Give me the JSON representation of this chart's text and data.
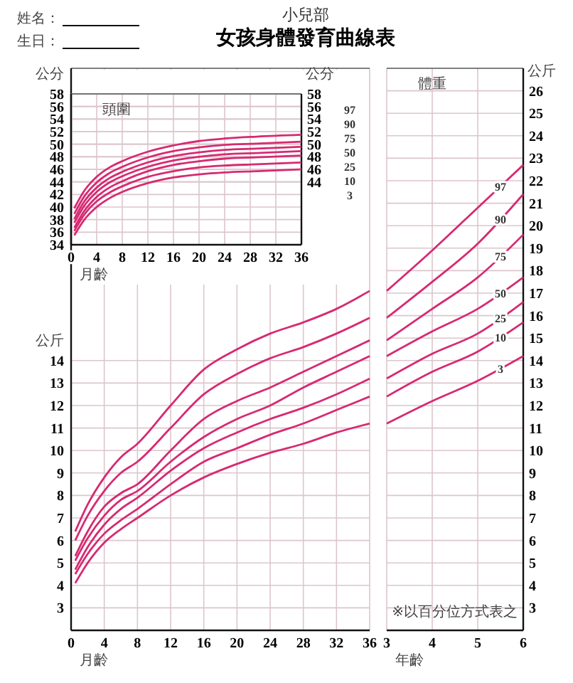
{
  "chart_data": [
    {
      "type": "line",
      "title": "女孩身體發育曲線表",
      "subtitle": "小兒部",
      "xlabel": "月齡",
      "ylabel": "公分",
      "y2label": "公分",
      "annotations": [
        "頭圍",
        "姓名：",
        "生日："
      ],
      "x": [
        0.5,
        2,
        4,
        6,
        8,
        12,
        16,
        20,
        24,
        29,
        36
      ],
      "xlim": [
        0,
        36
      ],
      "xticks": [
        0,
        4,
        8,
        12,
        16,
        20,
        24,
        28,
        32,
        36
      ],
      "ylim": [
        34,
        58
      ],
      "yticks": [
        34,
        36,
        38,
        40,
        42,
        44,
        46,
        48,
        50,
        52,
        54,
        56,
        58
      ],
      "y2lim": [
        34,
        58
      ],
      "y2ticks": [
        44,
        46,
        48,
        50,
        52,
        54,
        56,
        58
      ],
      "grid": true,
      "series": [
        {
          "name": "97",
          "color": "#d62a72",
          "values": [
            39.8,
            42.5,
            44.8,
            46.3,
            47.3,
            48.8,
            49.8,
            50.5,
            50.9,
            51.2,
            51.5
          ]
        },
        {
          "name": "90",
          "color": "#d62a72",
          "values": [
            38.9,
            41.6,
            43.9,
            45.4,
            46.4,
            47.9,
            48.9,
            49.5,
            49.9,
            50.1,
            50.4
          ]
        },
        {
          "name": "75",
          "color": "#d62a72",
          "values": [
            38.1,
            40.8,
            43.1,
            44.6,
            45.6,
            47.1,
            48.1,
            48.7,
            49.1,
            49.3,
            49.6
          ]
        },
        {
          "name": "50",
          "color": "#d62a72",
          "values": [
            37.5,
            40.1,
            42.4,
            43.9,
            44.9,
            46.4,
            47.4,
            48.0,
            48.4,
            48.6,
            48.9
          ]
        },
        {
          "name": "25",
          "color": "#d62a72",
          "values": [
            36.7,
            39.3,
            41.6,
            43.1,
            44.1,
            45.7,
            46.7,
            47.3,
            47.7,
            47.9,
            48.2
          ]
        },
        {
          "name": "10",
          "color": "#d62a72",
          "values": [
            36.2,
            38.7,
            40.9,
            42.3,
            43.3,
            44.8,
            45.7,
            46.3,
            46.6,
            46.8,
            47.1
          ]
        },
        {
          "name": "3",
          "color": "#d62a72",
          "values": [
            35.5,
            37.9,
            40.0,
            41.4,
            42.4,
            43.8,
            44.7,
            45.2,
            45.5,
            45.7,
            46.0
          ]
        }
      ]
    },
    {
      "type": "line",
      "xlabel": "月齡",
      "ylabel": "公斤",
      "x": [
        0.5,
        2,
        4,
        6,
        8,
        12,
        16,
        20,
        24,
        28,
        32,
        36
      ],
      "xlim": [
        0,
        36
      ],
      "xticks": [
        0,
        4,
        8,
        12,
        16,
        20,
        24,
        28,
        32,
        36
      ],
      "ylim": [
        2,
        27
      ],
      "yticks": [
        3,
        4,
        5,
        6,
        7,
        8,
        9,
        10,
        11,
        12,
        13,
        14
      ],
      "grid": true,
      "series": [
        {
          "color": "#d62a72",
          "values": [
            6.4,
            7.6,
            8.8,
            9.7,
            10.3,
            12.0,
            13.6,
            14.5,
            15.2,
            15.7,
            16.3,
            17.1
          ]
        },
        {
          "color": "#d62a72",
          "values": [
            6.0,
            7.1,
            8.2,
            9.0,
            9.5,
            11.0,
            12.5,
            13.4,
            14.1,
            14.6,
            15.2,
            15.9
          ]
        },
        {
          "color": "#d62a72",
          "values": [
            5.3,
            6.4,
            7.5,
            8.1,
            8.5,
            10.0,
            11.4,
            12.2,
            12.8,
            13.5,
            14.2,
            14.9
          ]
        },
        {
          "color": "#d62a72",
          "values": [
            5.1,
            6.1,
            7.1,
            7.8,
            8.2,
            9.5,
            10.6,
            11.4,
            12.0,
            12.8,
            13.5,
            14.2
          ]
        },
        {
          "color": "#d62a72",
          "values": [
            4.7,
            5.7,
            6.7,
            7.4,
            7.9,
            9.1,
            10.1,
            10.8,
            11.4,
            11.9,
            12.5,
            13.2
          ]
        },
        {
          "color": "#d62a72",
          "values": [
            4.5,
            5.4,
            6.3,
            6.9,
            7.4,
            8.5,
            9.5,
            10.1,
            10.7,
            11.2,
            11.8,
            12.4
          ]
        },
        {
          "color": "#d62a72",
          "values": [
            4.1,
            5.0,
            5.9,
            6.5,
            7.0,
            8.0,
            8.8,
            9.4,
            9.9,
            10.3,
            10.8,
            11.2
          ]
        }
      ]
    },
    {
      "type": "line",
      "xlabel": "年齡",
      "y2label": "公斤",
      "annotations": [
        "體重",
        "※以百分位方式表之"
      ],
      "x": [
        3,
        4,
        5,
        6
      ],
      "xlim": [
        3,
        6
      ],
      "xticks": [
        3,
        4,
        5,
        6
      ],
      "y2lim": [
        2,
        27
      ],
      "y2ticks": [
        3,
        4,
        5,
        6,
        7,
        8,
        9,
        10,
        11,
        12,
        13,
        14,
        15,
        16,
        17,
        18,
        19,
        20,
        21,
        22,
        23,
        24,
        25,
        26
      ],
      "grid": true,
      "series": [
        {
          "name": "97",
          "color": "#d62a72",
          "axis": "y2",
          "values": [
            17.1,
            18.9,
            20.8,
            22.7
          ]
        },
        {
          "name": "90",
          "color": "#d62a72",
          "axis": "y2",
          "values": [
            15.9,
            17.5,
            19.2,
            21.4
          ]
        },
        {
          "name": "75",
          "color": "#d62a72",
          "axis": "y2",
          "values": [
            14.9,
            16.3,
            17.7,
            19.6
          ]
        },
        {
          "name": "50",
          "color": "#d62a72",
          "axis": "y2",
          "values": [
            14.2,
            15.3,
            16.3,
            17.7
          ]
        },
        {
          "name": "25",
          "color": "#d62a72",
          "axis": "y2",
          "values": [
            13.2,
            14.3,
            15.2,
            16.6
          ]
        },
        {
          "name": "10",
          "color": "#d62a72",
          "axis": "y2",
          "values": [
            12.4,
            13.5,
            14.4,
            15.7
          ]
        },
        {
          "name": "3",
          "color": "#d62a72",
          "axis": "y2",
          "values": [
            11.2,
            12.2,
            13.1,
            14.2
          ]
        }
      ]
    }
  ]
}
